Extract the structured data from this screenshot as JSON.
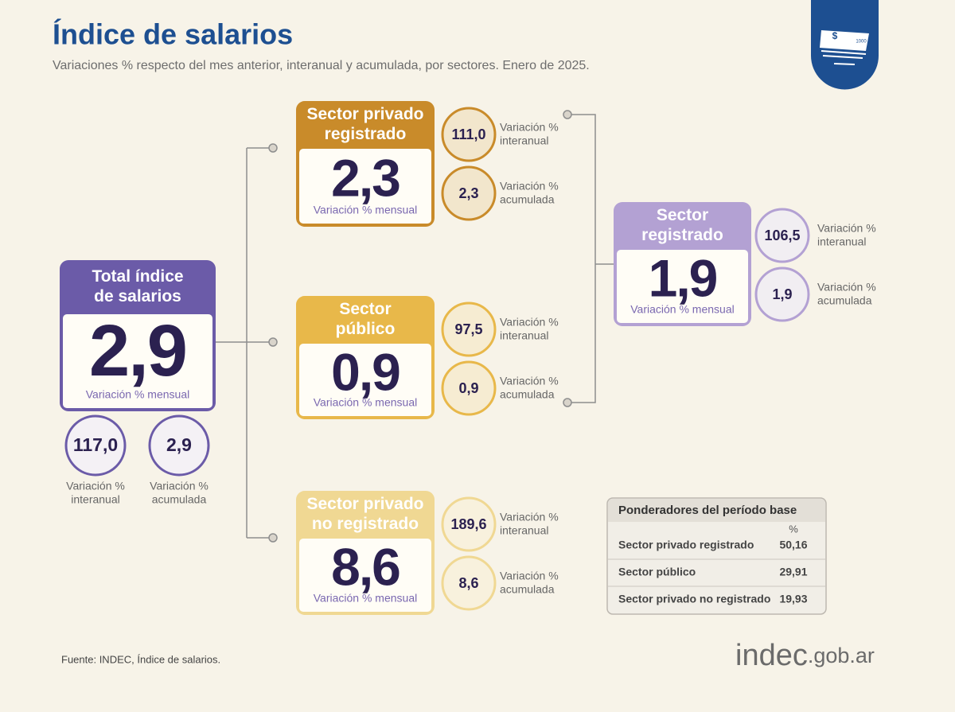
{
  "header": {
    "title": "Índice de salarios",
    "subtitle": "Variaciones % respecto del mes anterior, interanual y acumulada, por sectores. Enero de 2025."
  },
  "icon": {
    "symbol": "$",
    "amount": "1000"
  },
  "total": {
    "title_lines": [
      "Total índice",
      "de salarios"
    ],
    "value": "2,9",
    "value_label": "Variación % mensual",
    "circles": [
      {
        "value": "117,0",
        "label_lines": [
          "Variación %",
          "interanual"
        ]
      },
      {
        "value": "2,9",
        "label_lines": [
          "Variación %",
          "acumulada"
        ]
      }
    ]
  },
  "sectors": [
    {
      "title_lines": [
        "Sector privado",
        "registrado"
      ],
      "value": "2,3",
      "value_label": "Variación % mensual",
      "circles": [
        {
          "value": "111,0",
          "label_lines": [
            "Variación %",
            "interanual"
          ]
        },
        {
          "value": "2,3",
          "label_lines": [
            "Variación %",
            "acumulada"
          ]
        }
      ]
    },
    {
      "title_lines": [
        "Sector",
        "público"
      ],
      "value": "0,9",
      "value_label": "Variación % mensual",
      "circles": [
        {
          "value": "97,5",
          "label_lines": [
            "Variación %",
            "interanual"
          ]
        },
        {
          "value": "0,9",
          "label_lines": [
            "Variación %",
            "acumulada"
          ]
        }
      ]
    },
    {
      "title_lines": [
        "Sector privado",
        "no registrado"
      ],
      "value": "8,6",
      "value_label": "Variación % mensual",
      "circles": [
        {
          "value": "189,6",
          "label_lines": [
            "Variación %",
            "interanual"
          ]
        },
        {
          "value": "8,6",
          "label_lines": [
            "Variación %",
            "acumulada"
          ]
        }
      ]
    },
    {
      "title_lines": [
        "Sector",
        "registrado"
      ],
      "value": "1,9",
      "value_label": "Variación % mensual",
      "circles": [
        {
          "value": "106,5",
          "label_lines": [
            "Variación %",
            "interanual"
          ]
        },
        {
          "value": "1,9",
          "label_lines": [
            "Variación %",
            "acumulada"
          ]
        }
      ]
    }
  ],
  "table": {
    "title": "Ponderadores del período base",
    "unit": "%",
    "rows": [
      [
        "Sector privado registrado",
        "50,16"
      ],
      [
        "Sector público",
        "29,91"
      ],
      [
        "Sector privado no registrado",
        "19,93"
      ]
    ]
  },
  "footer": {
    "source": "Fuente: INDEC, Índice de salarios.",
    "logo_main": "indec",
    "logo_suffix": ".gob.ar"
  }
}
